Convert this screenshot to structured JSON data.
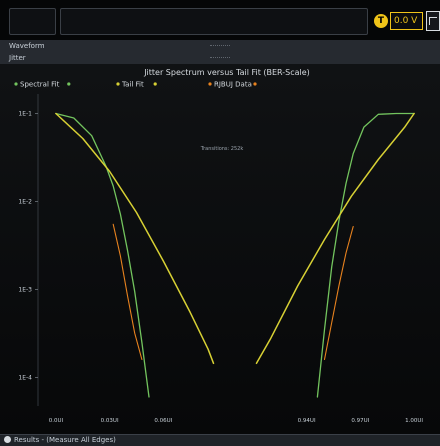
{
  "toolbar": {
    "trigger_badge": "T",
    "trigger_level": "0.0 V",
    "trigger_color": "#f0c419"
  },
  "panels": {
    "waveform_title": "Waveform",
    "jitter_title": "Jitter"
  },
  "bottom_bar": {
    "results_label": "Results - (Measure All Edges)"
  },
  "chart_data": {
    "type": "line",
    "title": "Jitter Spectrum versus Tail Fit (BER-Scale)",
    "annotation": "Transitions: 252k",
    "legend": [
      {
        "name": "Spectral Fit",
        "color": "#73c45e"
      },
      {
        "name": "Tail Fit",
        "color": "#d7d034"
      },
      {
        "name": "RJBUJ Data",
        "color": "#e8821e"
      }
    ],
    "legend_placement": "top",
    "y_scale": "log",
    "ylim": [
      5e-05,
      0.15
    ],
    "y_ticks": [
      {
        "label": "1E-1",
        "value": 0.1
      },
      {
        "label": "1E-2",
        "value": 0.01
      },
      {
        "label": "1E-3",
        "value": 0.001
      },
      {
        "label": "1E-4",
        "value": 0.0001
      }
    ],
    "x_axis_break": true,
    "xlim_left": [
      -0.01,
      0.1
    ],
    "xlim_right": [
      0.9,
      1.01
    ],
    "x_ticks": [
      {
        "label": "0.0UI",
        "value": 0.0
      },
      {
        "label": "0.03UI",
        "value": 0.03
      },
      {
        "label": "0.06UI",
        "value": 0.06
      },
      {
        "label": "0.94UI",
        "value": 0.94
      },
      {
        "label": "0.97UI",
        "value": 0.97
      },
      {
        "label": "1.00UI",
        "value": 1.0
      }
    ],
    "grid": false,
    "series": [
      {
        "name": "Spectral Fit",
        "color": "#73c45e",
        "segments": [
          {
            "x": [
              0.0,
              0.01,
              0.02,
              0.028,
              0.032,
              0.036,
              0.04,
              0.044,
              0.048,
              0.052
            ],
            "y": [
              0.1,
              0.089,
              0.056,
              0.025,
              0.015,
              0.0072,
              0.0028,
              0.00095,
              0.00025,
              6e-05
            ]
          },
          {
            "x": [
              0.946,
              0.95,
              0.954,
              0.958,
              0.962,
              0.966,
              0.972,
              0.98,
              0.99,
              1.0
            ],
            "y": [
              6e-05,
              0.00035,
              0.0018,
              0.006,
              0.016,
              0.035,
              0.07,
              0.098,
              0.1,
              0.1
            ]
          }
        ]
      },
      {
        "name": "Tail Fit",
        "color": "#d7d034",
        "segments": [
          {
            "x": [
              0.0,
              0.015,
              0.03,
              0.045,
              0.06,
              0.075,
              0.085,
              0.088
            ],
            "y": [
              0.1,
              0.052,
              0.022,
              0.0075,
              0.0021,
              0.00055,
              0.00021,
              0.000145
            ]
          },
          {
            "x": [
              0.912,
              0.92,
              0.935,
              0.95,
              0.965,
              0.98,
              0.995,
              1.0
            ],
            "y": [
              0.000145,
              0.00028,
              0.0011,
              0.0037,
              0.0115,
              0.03,
              0.071,
              0.1
            ]
          }
        ]
      },
      {
        "name": "RJBUJ Data",
        "color": "#e8821e",
        "segments": [
          {
            "x": [
              0.032,
              0.036,
              0.04,
              0.044,
              0.048
            ],
            "y": [
              0.0055,
              0.0024,
              0.00085,
              0.00032,
              0.00016
            ]
          },
          {
            "x": [
              0.95,
              0.954,
              0.958,
              0.962,
              0.966
            ],
            "y": [
              0.00016,
              0.00042,
              0.0011,
              0.0026,
              0.0052
            ]
          }
        ]
      }
    ]
  }
}
